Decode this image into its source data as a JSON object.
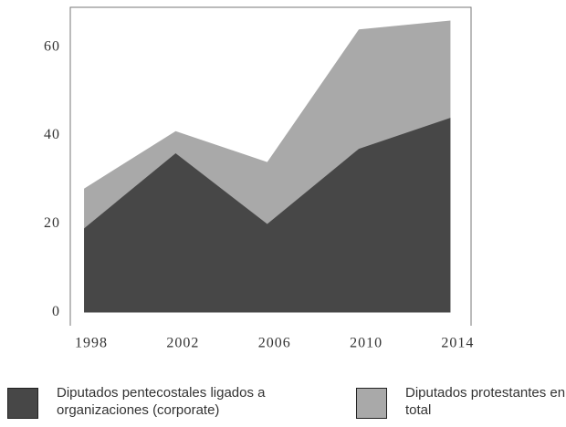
{
  "chart_data": {
    "type": "area",
    "x": [
      1998,
      2002,
      2006,
      2010,
      2014
    ],
    "series": [
      {
        "name": "Diputados protestantes en total",
        "color": "#a9a9a9",
        "values": [
          28,
          41,
          34,
          64,
          66
        ]
      },
      {
        "name": "Diputados pentecostales ligados a organizaciones (corporate)",
        "color": "#474747",
        "values": [
          19,
          36,
          20,
          37,
          44
        ]
      }
    ],
    "xlim": [
      1997.4,
      2014.9
    ],
    "xticks": [
      1998,
      2002,
      2006,
      2010,
      2014
    ],
    "ylim": [
      -3,
      69
    ],
    "yticks": [
      0,
      20,
      40,
      60
    ]
  }
}
